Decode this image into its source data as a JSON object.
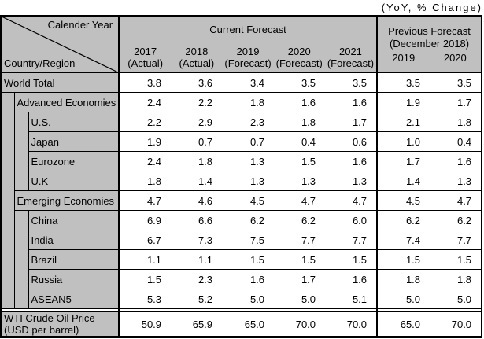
{
  "note": "(YoY, % Change)",
  "table": {
    "corner": {
      "top_right": "Calender Year",
      "bottom_left": "Country/Region"
    },
    "current_forecast": {
      "title": "Current Forecast",
      "years": [
        {
          "year": "2017",
          "kind": "(Actual)"
        },
        {
          "year": "2018",
          "kind": "(Actual)"
        },
        {
          "year": "2019",
          "kind": "(Forecast)"
        },
        {
          "year": "2020",
          "kind": "(Forecast)"
        },
        {
          "year": "2021",
          "kind": "(Forecast)"
        }
      ]
    },
    "previous_forecast": {
      "title_line1": "Previous Forecast",
      "title_line2": "(December 2018)",
      "years": [
        "2019",
        "2020"
      ]
    },
    "rows": [
      {
        "label": "World Total",
        "indent": 0,
        "values": [
          "3.8",
          "3.6",
          "3.4",
          "3.5",
          "3.5"
        ],
        "prev": [
          "3.5",
          "3.5"
        ]
      },
      {
        "label": "Advanced Economies",
        "indent": 1,
        "values": [
          "2.4",
          "2.2",
          "1.8",
          "1.6",
          "1.6"
        ],
        "prev": [
          "1.9",
          "1.7"
        ]
      },
      {
        "label": "U.S.",
        "indent": 2,
        "values": [
          "2.2",
          "2.9",
          "2.3",
          "1.8",
          "1.7"
        ],
        "prev": [
          "2.1",
          "1.8"
        ]
      },
      {
        "label": "Japan",
        "indent": 2,
        "values": [
          "1.9",
          "0.7",
          "0.7",
          "0.4",
          "0.6"
        ],
        "prev": [
          "1.0",
          "0.4"
        ]
      },
      {
        "label": "Eurozone",
        "indent": 2,
        "values": [
          "2.4",
          "1.8",
          "1.3",
          "1.5",
          "1.6"
        ],
        "prev": [
          "1.7",
          "1.6"
        ]
      },
      {
        "label": "U.K",
        "indent": 2,
        "values": [
          "1.8",
          "1.4",
          "1.3",
          "1.3",
          "1.3"
        ],
        "prev": [
          "1.4",
          "1.3"
        ]
      },
      {
        "label": "Emerging Economies",
        "indent": 1,
        "values": [
          "4.7",
          "4.6",
          "4.5",
          "4.7",
          "4.7"
        ],
        "prev": [
          "4.5",
          "4.7"
        ]
      },
      {
        "label": "China",
        "indent": 2,
        "values": [
          "6.9",
          "6.6",
          "6.2",
          "6.2",
          "6.0"
        ],
        "prev": [
          "6.2",
          "6.2"
        ]
      },
      {
        "label": "India",
        "indent": 2,
        "values": [
          "6.7",
          "7.3",
          "7.5",
          "7.7",
          "7.7"
        ],
        "prev": [
          "7.4",
          "7.7"
        ]
      },
      {
        "label": "Brazil",
        "indent": 2,
        "values": [
          "1.1",
          "1.1",
          "1.5",
          "1.5",
          "1.5"
        ],
        "prev": [
          "1.5",
          "1.5"
        ]
      },
      {
        "label": "Russia",
        "indent": 2,
        "values": [
          "1.5",
          "2.3",
          "1.6",
          "1.7",
          "1.6"
        ],
        "prev": [
          "1.8",
          "1.8"
        ]
      },
      {
        "label": "ASEAN5",
        "indent": 2,
        "values": [
          "5.3",
          "5.2",
          "5.0",
          "5.0",
          "5.1"
        ],
        "prev": [
          "5.0",
          "5.0"
        ]
      }
    ],
    "footer": {
      "label_line1": "WTI Crude Oil Price",
      "label_line2": "(USD per barrel)",
      "values": [
        "50.9",
        "65.9",
        "65.0",
        "70.0",
        "70.0"
      ],
      "prev": [
        "65.0",
        "70.0"
      ]
    },
    "colors": {
      "header_bg": "#c0c0c0",
      "cell_bg": "#ffffff",
      "border": "#000000"
    }
  }
}
